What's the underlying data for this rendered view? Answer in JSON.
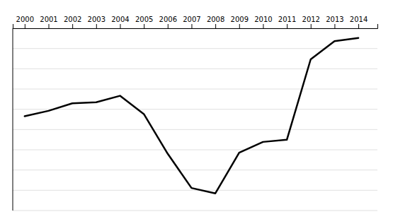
{
  "chart_data": {
    "type": "line",
    "x": [
      2000,
      2001,
      2002,
      2003,
      2004,
      2005,
      2006,
      2007,
      2008,
      2009,
      2010,
      2011,
      2012,
      2013,
      2014
    ],
    "values": [
      -7.7,
      -7.2,
      -6.5,
      -6.4,
      -5.8,
      -7.5,
      -11.2,
      -14.4,
      -14.9,
      -11.1,
      -10.1,
      -9.9,
      -2.4,
      -0.7,
      -0.4
    ],
    "color": "#000000",
    "xlim": [
      1999.5,
      2014.8
    ],
    "ylim": [
      -16.5,
      0.5
    ],
    "xticks": [
      2000,
      2001,
      2002,
      2003,
      2004,
      2005,
      2006,
      2007,
      2008,
      2009,
      2010,
      2011,
      2012,
      2013,
      2014
    ],
    "yticks": [
      -16.5,
      -14.61111111111111,
      -12.722222222222221,
      -10.833333333333334,
      -8.944444444444445,
      -7.055555555555555,
      -5.166666666666666,
      -3.2777777777777786,
      -1.3888888888888893,
      0.5
    ],
    "grid": true,
    "tick_labels": "x"
  }
}
